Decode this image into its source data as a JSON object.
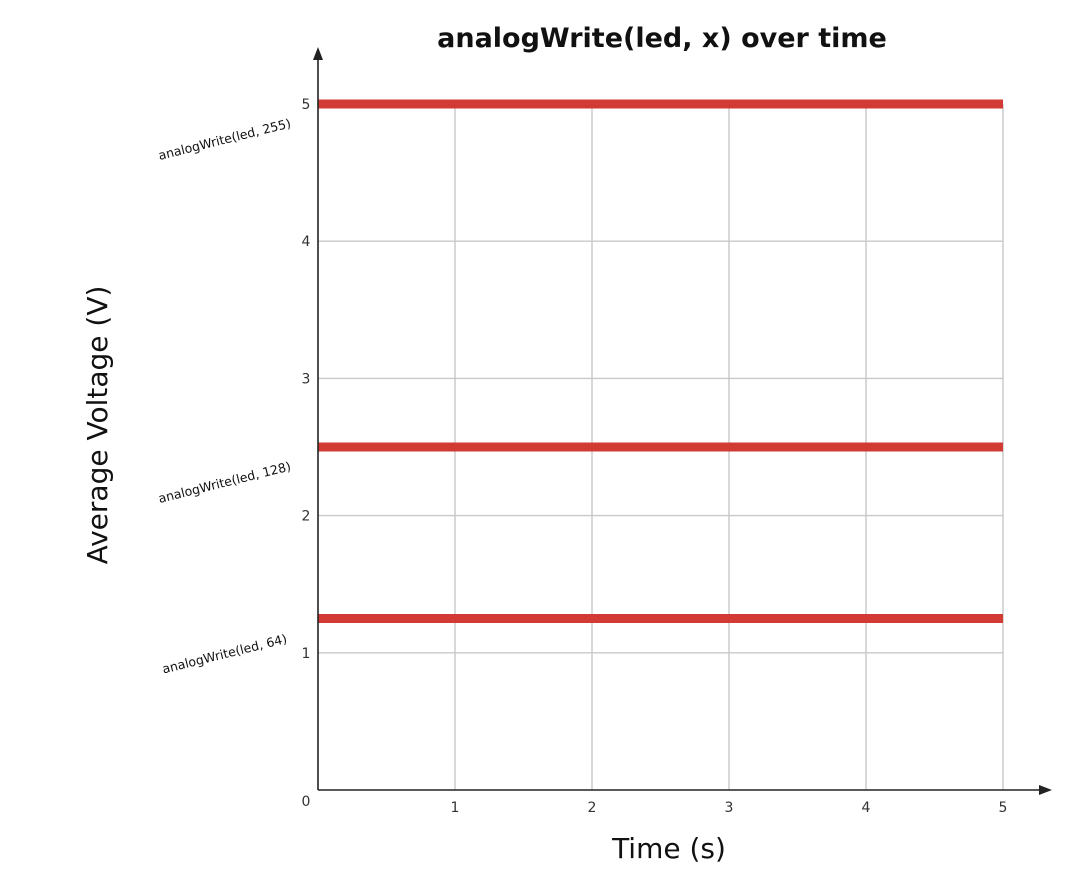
{
  "chart_data": {
    "type": "line",
    "title": "analogWrite(led, x) over time",
    "xlabel": "Time (s)",
    "ylabel": "Average Voltage (V)",
    "xlim": [
      0,
      5
    ],
    "ylim": [
      0,
      5
    ],
    "x_ticks": [
      "0",
      "1",
      "2",
      "3",
      "4",
      "5"
    ],
    "y_ticks": [
      "1",
      "2",
      "3",
      "4",
      "5"
    ],
    "grid": true,
    "line_color": "#d23b34",
    "grid_color": "#c8c8c8",
    "series": [
      {
        "name": "analogWrite(led, 255)",
        "x": [
          0,
          5
        ],
        "values": [
          5,
          5
        ]
      },
      {
        "name": "analogWrite(led, 128)",
        "x": [
          0,
          5
        ],
        "values": [
          2.5,
          2.5
        ]
      },
      {
        "name": "analogWrite(led, 64)",
        "x": [
          0,
          5
        ],
        "values": [
          1.25,
          1.25
        ]
      }
    ]
  }
}
